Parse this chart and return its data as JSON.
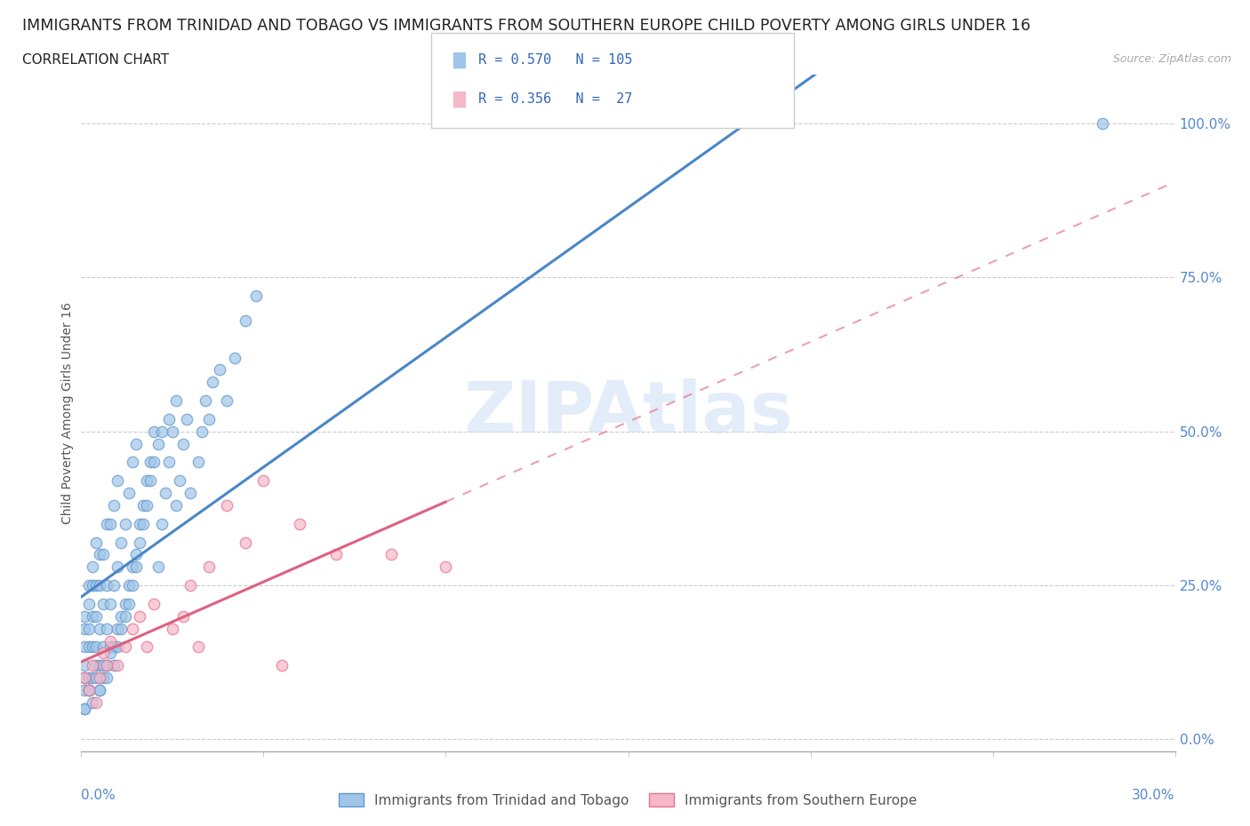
{
  "title": "IMMIGRANTS FROM TRINIDAD AND TOBAGO VS IMMIGRANTS FROM SOUTHERN EUROPE CHILD POVERTY AMONG GIRLS UNDER 16",
  "subtitle": "CORRELATION CHART",
  "source": "Source: ZipAtlas.com",
  "ylabel": "Child Poverty Among Girls Under 16",
  "ytick_labels": [
    "0.0%",
    "25.0%",
    "50.0%",
    "75.0%",
    "100.0%"
  ],
  "ytick_values": [
    0.0,
    0.25,
    0.5,
    0.75,
    1.0
  ],
  "xlim": [
    0.0,
    0.3
  ],
  "ylim": [
    -0.02,
    1.08
  ],
  "blue_R": 0.57,
  "blue_N": 105,
  "pink_R": 0.356,
  "pink_N": 27,
  "blue_color": "#9fc5e8",
  "pink_color": "#f4b8c8",
  "blue_edge_color": "#6699cc",
  "pink_edge_color": "#e87090",
  "blue_line_color": "#4a86c8",
  "pink_line_color": "#e06080",
  "legend_blue_label": "Immigrants from Trinidad and Tobago",
  "legend_pink_label": "Immigrants from Southern Europe",
  "watermark": "ZIPAtlas",
  "title_fontsize": 12.5,
  "subtitle_fontsize": 11,
  "blue_scatter_x": [
    0.001,
    0.001,
    0.001,
    0.001,
    0.001,
    0.001,
    0.001,
    0.002,
    0.002,
    0.002,
    0.002,
    0.002,
    0.002,
    0.003,
    0.003,
    0.003,
    0.003,
    0.003,
    0.004,
    0.004,
    0.004,
    0.004,
    0.004,
    0.005,
    0.005,
    0.005,
    0.005,
    0.005,
    0.006,
    0.006,
    0.006,
    0.006,
    0.007,
    0.007,
    0.007,
    0.007,
    0.008,
    0.008,
    0.008,
    0.009,
    0.009,
    0.009,
    0.01,
    0.01,
    0.01,
    0.011,
    0.011,
    0.012,
    0.012,
    0.013,
    0.013,
    0.014,
    0.014,
    0.015,
    0.015,
    0.016,
    0.017,
    0.018,
    0.019,
    0.02,
    0.021,
    0.022,
    0.023,
    0.024,
    0.025,
    0.026,
    0.027,
    0.028,
    0.029,
    0.03,
    0.032,
    0.033,
    0.034,
    0.035,
    0.036,
    0.038,
    0.04,
    0.042,
    0.045,
    0.048,
    0.001,
    0.002,
    0.003,
    0.004,
    0.005,
    0.006,
    0.007,
    0.008,
    0.009,
    0.01,
    0.011,
    0.012,
    0.013,
    0.014,
    0.015,
    0.016,
    0.017,
    0.018,
    0.019,
    0.02,
    0.021,
    0.022,
    0.024,
    0.026,
    0.28
  ],
  "blue_scatter_y": [
    0.05,
    0.08,
    0.1,
    0.12,
    0.15,
    0.18,
    0.2,
    0.08,
    0.1,
    0.15,
    0.18,
    0.22,
    0.25,
    0.1,
    0.15,
    0.2,
    0.25,
    0.28,
    0.12,
    0.15,
    0.2,
    0.25,
    0.32,
    0.08,
    0.12,
    0.18,
    0.25,
    0.3,
    0.1,
    0.15,
    0.22,
    0.3,
    0.12,
    0.18,
    0.25,
    0.35,
    0.15,
    0.22,
    0.35,
    0.15,
    0.25,
    0.38,
    0.18,
    0.28,
    0.42,
    0.2,
    0.32,
    0.22,
    0.35,
    0.25,
    0.4,
    0.28,
    0.45,
    0.3,
    0.48,
    0.35,
    0.38,
    0.42,
    0.45,
    0.5,
    0.28,
    0.35,
    0.4,
    0.45,
    0.5,
    0.38,
    0.42,
    0.48,
    0.52,
    0.4,
    0.45,
    0.5,
    0.55,
    0.52,
    0.58,
    0.6,
    0.55,
    0.62,
    0.68,
    0.72,
    0.05,
    0.08,
    0.06,
    0.1,
    0.08,
    0.12,
    0.1,
    0.14,
    0.12,
    0.15,
    0.18,
    0.2,
    0.22,
    0.25,
    0.28,
    0.32,
    0.35,
    0.38,
    0.42,
    0.45,
    0.48,
    0.5,
    0.52,
    0.55,
    1.0
  ],
  "pink_scatter_x": [
    0.001,
    0.002,
    0.003,
    0.004,
    0.005,
    0.006,
    0.007,
    0.008,
    0.01,
    0.012,
    0.014,
    0.016,
    0.018,
    0.02,
    0.025,
    0.028,
    0.03,
    0.032,
    0.035,
    0.04,
    0.045,
    0.05,
    0.055,
    0.06,
    0.07,
    0.085,
    0.1
  ],
  "pink_scatter_y": [
    0.1,
    0.08,
    0.12,
    0.06,
    0.1,
    0.14,
    0.12,
    0.16,
    0.12,
    0.15,
    0.18,
    0.2,
    0.15,
    0.22,
    0.18,
    0.2,
    0.25,
    0.15,
    0.28,
    0.38,
    0.32,
    0.42,
    0.12,
    0.35,
    0.3,
    0.3,
    0.28
  ]
}
